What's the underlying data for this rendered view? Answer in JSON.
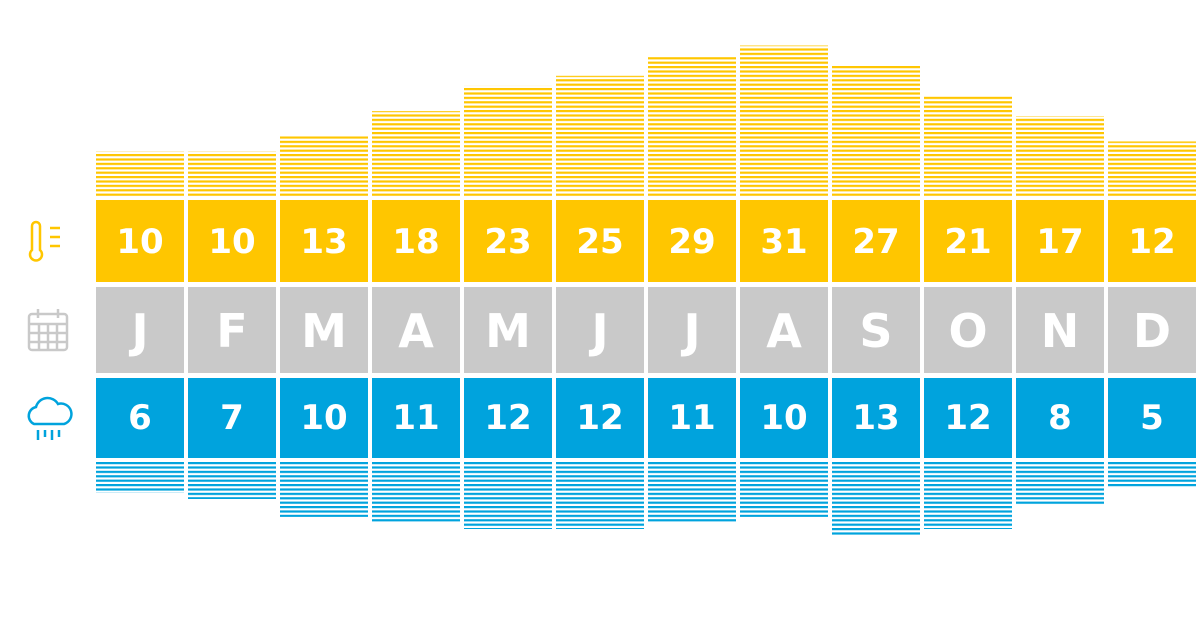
{
  "chart_data": {
    "type": "climate",
    "categories": [
      "J",
      "F",
      "M",
      "A",
      "M",
      "J",
      "J",
      "A",
      "S",
      "O",
      "N",
      "D"
    ],
    "temperature": {
      "color": "#ffc600",
      "values": [
        10,
        10,
        13,
        18,
        23,
        25,
        29,
        31,
        27,
        21,
        17,
        12
      ]
    },
    "rain_days": {
      "color": "#00a3dd",
      "values": [
        6,
        7,
        10,
        11,
        12,
        12,
        11,
        10,
        13,
        12,
        8,
        5
      ]
    },
    "month_color": "#c9c9c9"
  }
}
